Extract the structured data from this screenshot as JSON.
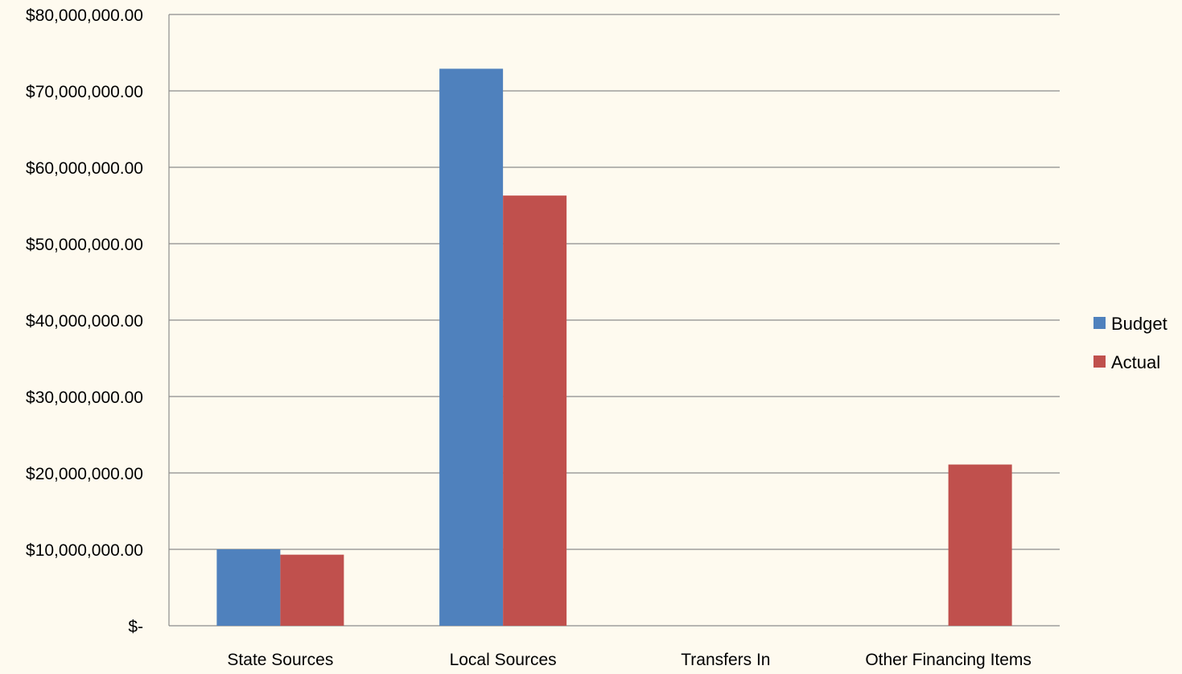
{
  "chart_data": {
    "type": "bar",
    "title": "",
    "xlabel": "",
    "ylabel": "",
    "categories": [
      "State Sources",
      "Local Sources",
      "Transfers In",
      "Other Financing Items"
    ],
    "series": [
      {
        "name": "Budget",
        "values": [
          10000000,
          72900000,
          0,
          0
        ]
      },
      {
        "name": "Actual",
        "values": [
          9300000,
          56300000,
          0,
          21100000
        ]
      }
    ],
    "ylim": [
      0,
      80000000
    ],
    "y_ticks": [
      0,
      10000000,
      20000000,
      30000000,
      40000000,
      50000000,
      60000000,
      70000000,
      80000000
    ],
    "y_tick_labels": [
      "$-",
      "$10,000,000.00",
      "$20,000,000.00",
      "$30,000,000.00",
      "$40,000,000.00",
      "$50,000,000.00",
      "$60,000,000.00",
      "$70,000,000.00",
      "$80,000,000.00"
    ],
    "grid": true,
    "legend_position": "right",
    "colors": {
      "Budget": "#4f81bd",
      "Actual": "#c0504d",
      "background": "#fefaef",
      "grid": "#8c8c8c"
    }
  }
}
